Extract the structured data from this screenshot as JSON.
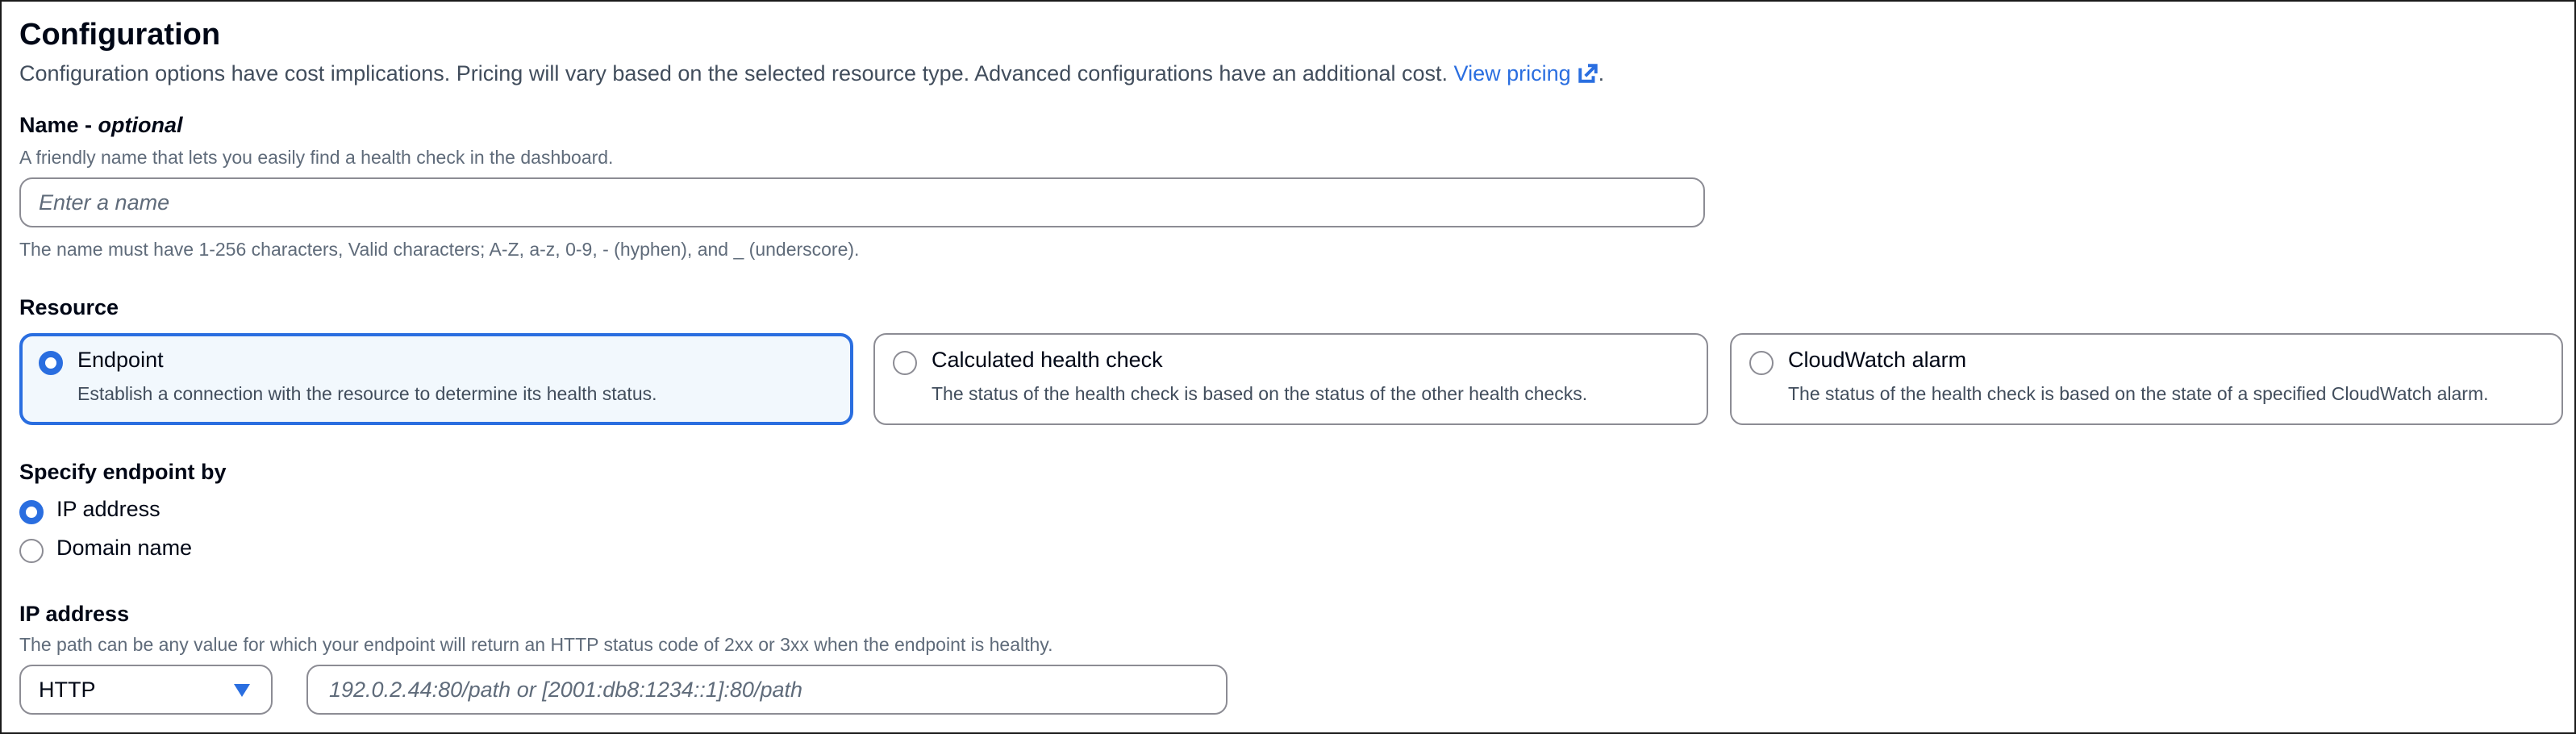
{
  "title": "Configuration",
  "description": "Configuration options have cost implications. Pricing will vary based on the selected resource type. Advanced configurations have an additional cost.",
  "view_pricing": "View pricing",
  "period": ".",
  "accent": "#2a6ee0",
  "name": {
    "label": "Name - ",
    "optional": "optional",
    "description": "A friendly name that lets you easily find a health check in the dashboard.",
    "placeholder": "Enter a name",
    "value": "",
    "constraint": "The name must have 1-256 characters, Valid characters; A-Z, a-z, 0-9, - (hyphen), and _ (underscore)."
  },
  "resource": {
    "label": "Resource",
    "options": [
      {
        "title": "Endpoint",
        "description": "Establish a connection with the resource to determine its health status.",
        "selected": true
      },
      {
        "title": "Calculated health check",
        "description": "The status of the health check is based on the status of the other health checks.",
        "selected": false
      },
      {
        "title": "CloudWatch alarm",
        "description": "The status of the health check is based on the state of a specified CloudWatch alarm.",
        "selected": false
      }
    ]
  },
  "specify": {
    "label": "Specify endpoint by",
    "options": [
      {
        "label": "IP address",
        "selected": true
      },
      {
        "label": "Domain name",
        "selected": false
      }
    ]
  },
  "ip": {
    "label": "IP address",
    "description": "The path can be any value for which your endpoint will return an HTTP status code of 2xx or 3xx when the endpoint is healthy.",
    "protocol": "HTTP",
    "placeholder": "192.0.2.44:80/path or [2001:db8:1234::1]:80/path",
    "value": ""
  }
}
